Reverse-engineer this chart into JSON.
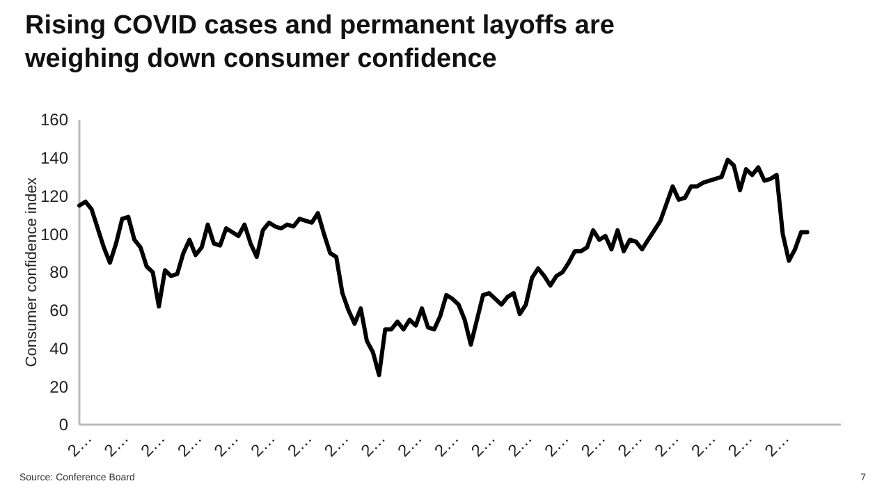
{
  "chart_data": {
    "type": "line",
    "title": "Rising COVID cases and permanent layoffs are weighing down consumer confidence",
    "ylabel": "Consumer confidence index",
    "categories": [
      "2…",
      null,
      null,
      null,
      null,
      null,
      "2…",
      null,
      null,
      null,
      null,
      null,
      "2…",
      null,
      null,
      null,
      null,
      null,
      "2…",
      null,
      null,
      null,
      null,
      null,
      "2…",
      null,
      null,
      null,
      null,
      null,
      "2…",
      null,
      null,
      null,
      null,
      null,
      "2…",
      null,
      null,
      null,
      null,
      null,
      "2…",
      null,
      null,
      null,
      null,
      null,
      "2…",
      null,
      null,
      null,
      null,
      null,
      "2…",
      null,
      null,
      null,
      null,
      null,
      "2…",
      null,
      null,
      null,
      null,
      null,
      "2…",
      null,
      null,
      null,
      null,
      null,
      "2…",
      null,
      null,
      null,
      null,
      null,
      "2…",
      null,
      null,
      null,
      null,
      null,
      "2…",
      null,
      null,
      null,
      null,
      null,
      "2…",
      null,
      null,
      null,
      null,
      null,
      "2…",
      null,
      null,
      null,
      null,
      null,
      "2…",
      null,
      null,
      null,
      null,
      null,
      "2…",
      null,
      null,
      null,
      null,
      null,
      "2…",
      null,
      null,
      null,
      null,
      null,
      null,
      null,
      null,
      null,
      null
    ],
    "series": [
      {
        "color": "#000000",
        "values": [
          115,
          117,
          113,
          103,
          93,
          85,
          95,
          108,
          109,
          97,
          93,
          83,
          80,
          62,
          81,
          78,
          79,
          90,
          97,
          89,
          93,
          105,
          95,
          94,
          103,
          101,
          99,
          105,
          95,
          88,
          102,
          106,
          104,
          103,
          105,
          104,
          108,
          107,
          106,
          111,
          100,
          90,
          88,
          69,
          60,
          53,
          61,
          44,
          38,
          26,
          50,
          50,
          54,
          50,
          55,
          52,
          61,
          51,
          50,
          57,
          68,
          66,
          63,
          55,
          42,
          55,
          68,
          69,
          66,
          63,
          67,
          69,
          58,
          63,
          77,
          82,
          78,
          73,
          78,
          80,
          85,
          91,
          91,
          93,
          102,
          97,
          99,
          92,
          102,
          91,
          97,
          96,
          92,
          97,
          102,
          107,
          116,
          125,
          118,
          119,
          125,
          125,
          127,
          128,
          129,
          130,
          139,
          136,
          123,
          134,
          131,
          135,
          128,
          129,
          131,
          100,
          86,
          92,
          101,
          101,
          null,
          null,
          null,
          null,
          null
        ]
      }
    ],
    "ylim": [
      0,
      160
    ],
    "yticks": [
      0,
      20,
      40,
      60,
      80,
      100,
      120,
      140,
      160
    ],
    "grid": false,
    "line_style": "solid",
    "marker": "none",
    "annotations": [
      "Source: Conference Board",
      "7"
    ]
  }
}
